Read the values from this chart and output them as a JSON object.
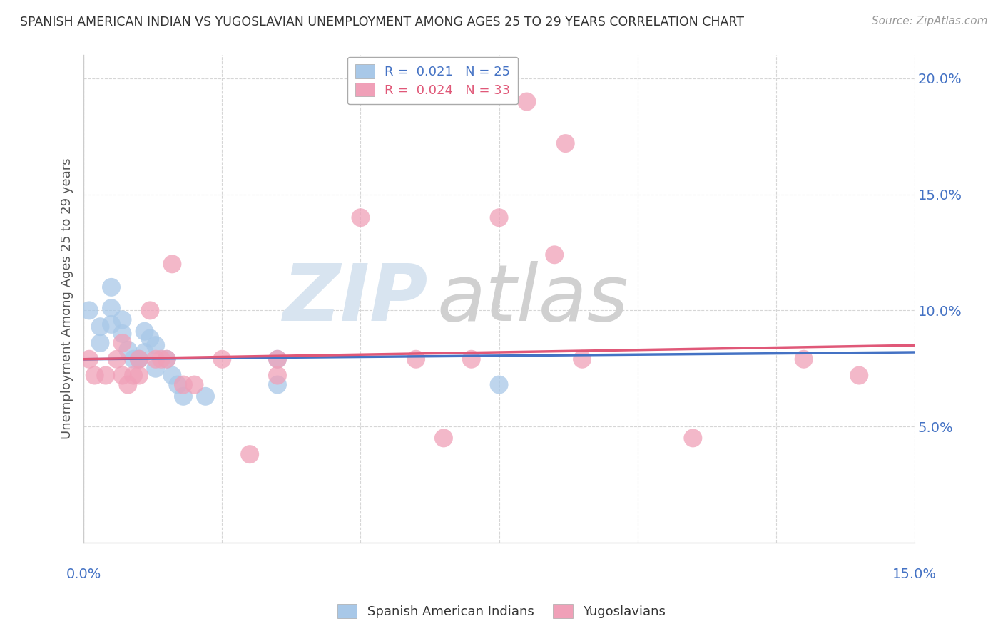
{
  "title": "SPANISH AMERICAN INDIAN VS YUGOSLAVIAN UNEMPLOYMENT AMONG AGES 25 TO 29 YEARS CORRELATION CHART",
  "source": "Source: ZipAtlas.com",
  "ylabel": "Unemployment Among Ages 25 to 29 years",
  "xlim": [
    0.0,
    0.15
  ],
  "ylim": [
    0.0,
    0.21
  ],
  "yticks": [
    0.05,
    0.1,
    0.15,
    0.2
  ],
  "ytick_labels": [
    "5.0%",
    "10.0%",
    "15.0%",
    "20.0%"
  ],
  "xtick_positions": [
    0.0,
    0.025,
    0.05,
    0.075,
    0.1,
    0.125,
    0.15
  ],
  "blue_color": "#a8c8e8",
  "pink_color": "#f0a0b8",
  "blue_line_color": "#4472c4",
  "pink_line_color": "#e05878",
  "blue_line_start": 0.079,
  "blue_line_end": 0.082,
  "pink_line_start": 0.079,
  "pink_line_end": 0.085,
  "blue_points": [
    [
      0.001,
      0.1
    ],
    [
      0.003,
      0.093
    ],
    [
      0.003,
      0.086
    ],
    [
      0.005,
      0.11
    ],
    [
      0.005,
      0.101
    ],
    [
      0.005,
      0.094
    ],
    [
      0.007,
      0.096
    ],
    [
      0.007,
      0.09
    ],
    [
      0.008,
      0.083
    ],
    [
      0.009,
      0.079
    ],
    [
      0.01,
      0.079
    ],
    [
      0.01,
      0.079
    ],
    [
      0.011,
      0.091
    ],
    [
      0.011,
      0.082
    ],
    [
      0.012,
      0.088
    ],
    [
      0.013,
      0.085
    ],
    [
      0.013,
      0.075
    ],
    [
      0.015,
      0.079
    ],
    [
      0.016,
      0.072
    ],
    [
      0.017,
      0.068
    ],
    [
      0.018,
      0.063
    ],
    [
      0.022,
      0.063
    ],
    [
      0.035,
      0.079
    ],
    [
      0.035,
      0.068
    ],
    [
      0.075,
      0.068
    ]
  ],
  "pink_points": [
    [
      0.001,
      0.079
    ],
    [
      0.002,
      0.072
    ],
    [
      0.004,
      0.072
    ],
    [
      0.006,
      0.079
    ],
    [
      0.007,
      0.086
    ],
    [
      0.007,
      0.072
    ],
    [
      0.008,
      0.068
    ],
    [
      0.009,
      0.072
    ],
    [
      0.01,
      0.079
    ],
    [
      0.01,
      0.072
    ],
    [
      0.012,
      0.1
    ],
    [
      0.013,
      0.079
    ],
    [
      0.014,
      0.079
    ],
    [
      0.015,
      0.079
    ],
    [
      0.016,
      0.12
    ],
    [
      0.018,
      0.068
    ],
    [
      0.02,
      0.068
    ],
    [
      0.025,
      0.079
    ],
    [
      0.03,
      0.038
    ],
    [
      0.035,
      0.079
    ],
    [
      0.035,
      0.072
    ],
    [
      0.05,
      0.14
    ],
    [
      0.06,
      0.079
    ],
    [
      0.065,
      0.045
    ],
    [
      0.07,
      0.079
    ],
    [
      0.075,
      0.14
    ],
    [
      0.08,
      0.19
    ],
    [
      0.085,
      0.124
    ],
    [
      0.087,
      0.172
    ],
    [
      0.09,
      0.079
    ],
    [
      0.11,
      0.045
    ],
    [
      0.13,
      0.079
    ],
    [
      0.14,
      0.072
    ]
  ],
  "watermark_zip_color": "#d8e4f0",
  "watermark_atlas_color": "#d0d0d0"
}
